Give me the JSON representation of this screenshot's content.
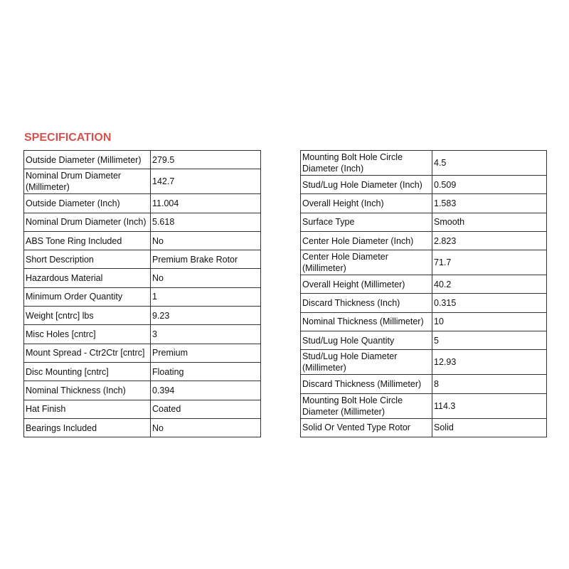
{
  "title": "SPECIFICATION",
  "left_table": [
    [
      "Outside Diameter (Millimeter)",
      "279.5"
    ],
    [
      "Nominal Drum Diameter (Millimeter)",
      "142.7"
    ],
    [
      "Outside Diameter (Inch)",
      "11.004"
    ],
    [
      "Nominal Drum Diameter (Inch)",
      "5.618"
    ],
    [
      "ABS Tone Ring Included",
      "No"
    ],
    [
      "Short Description",
      "Premium Brake Rotor"
    ],
    [
      "Hazardous Material",
      "No"
    ],
    [
      "Minimum Order Quantity",
      "1"
    ],
    [
      "Weight [cntrc] lbs",
      "9.23"
    ],
    [
      "Misc Holes [cntrc]",
      "3"
    ],
    [
      "Mount Spread - Ctr2Ctr [cntrc]",
      "Premium"
    ],
    [
      "Disc Mounting [cntrc]",
      "Floating"
    ],
    [
      "Nominal Thickness (Inch)",
      "0.394"
    ],
    [
      "Hat Finish",
      "Coated"
    ],
    [
      "Bearings Included",
      "No"
    ]
  ],
  "right_table": [
    [
      "Mounting Bolt Hole Circle Diameter (Inch)",
      "4.5"
    ],
    [
      "Stud/Lug Hole Diameter (Inch)",
      "0.509"
    ],
    [
      "Overall Height (Inch)",
      "1.583"
    ],
    [
      "Surface Type",
      "Smooth"
    ],
    [
      "Center Hole Diameter (Inch)",
      "2.823"
    ],
    [
      "Center Hole Diameter (Millimeter)",
      "71.7"
    ],
    [
      "Overall Height (Millimeter)",
      "40.2"
    ],
    [
      "Discard Thickness (Inch)",
      "0.315"
    ],
    [
      "Nominal Thickness (Millimeter)",
      "10"
    ],
    [
      "Stud/Lug Hole Quantity",
      "5"
    ],
    [
      "Stud/Lug Hole Diameter (Millimeter)",
      "12.93"
    ],
    [
      "Discard Thickness (Millimeter)",
      "8"
    ],
    [
      "Mounting Bolt Hole Circle Diameter (Millimeter)",
      "114.3"
    ],
    [
      "Solid Or Vented Type Rotor",
      "Solid"
    ]
  ],
  "colors": {
    "title": "#d5534f"
  }
}
